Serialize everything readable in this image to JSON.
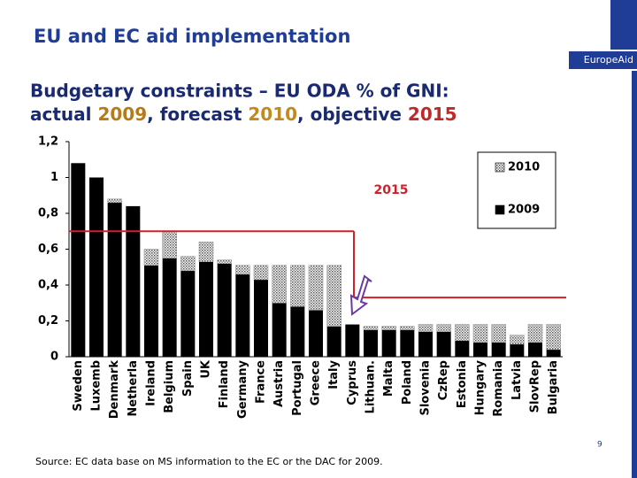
{
  "chart_data": {
    "type": "bar",
    "stacked": true,
    "title": "EU and EC aid implementation",
    "brand": "EuropeAid",
    "subtitle": [
      "Budgetary constraints – EU ODA % of GNI:",
      "actual ",
      "2009",
      ", forecast ",
      "2010",
      ", objective ",
      "2015"
    ],
    "categories": [
      "Sweden",
      "Luxemb",
      "Denmark",
      "Netherla",
      "Ireland",
      "Belgium",
      "Spain",
      "UK",
      "Finland",
      "Germany",
      "France",
      "Austria",
      "Portugal",
      "Greece",
      "Italy",
      "Cyprus",
      "Lithuan.",
      "Malta",
      "Poland",
      "Slovenia",
      "CzRep",
      "Estonia",
      "Hungary",
      "Romania",
      "Latvia",
      "SlovRep",
      "Bulgaria"
    ],
    "series": [
      {
        "name": "2009",
        "color": "#000000",
        "values": [
          1.08,
          1.0,
          0.86,
          0.84,
          0.51,
          0.55,
          0.48,
          0.53,
          0.52,
          0.46,
          0.43,
          0.3,
          0.28,
          0.26,
          0.17,
          0.18,
          0.15,
          0.15,
          0.15,
          0.14,
          0.14,
          0.09,
          0.08,
          0.08,
          0.07,
          0.08,
          0.04
        ]
      },
      {
        "name": "2010",
        "color": "#9a9a9a",
        "values": [
          0,
          0,
          0.02,
          0,
          0.09,
          0.15,
          0.08,
          0.11,
          0.02,
          0.05,
          0.08,
          0.21,
          0.23,
          0.25,
          0.34,
          0,
          0.02,
          0.02,
          0.02,
          0.04,
          0.04,
          0.09,
          0.1,
          0.1,
          0.05,
          0.1,
          0.14
        ]
      }
    ],
    "target_lines": [
      0.7,
      0.33
    ],
    "annotation": "2015",
    "ylim": [
      0,
      1.2
    ],
    "yticks": [
      0,
      {
        "value": 0.2,
        "label": "0,2"
      },
      {
        "value": 0.4,
        "label": "0,4"
      },
      {
        "value": 0.6,
        "label": "0,6"
      },
      {
        "value": 0.8,
        "label": "0,8"
      },
      1,
      {
        "value": 1.2,
        "label": "1,2"
      }
    ],
    "legend": "upper right",
    "grid": false,
    "source": "Source: EC data base on MS information to the EC or the DAC for 2009.",
    "page_number": "9"
  }
}
